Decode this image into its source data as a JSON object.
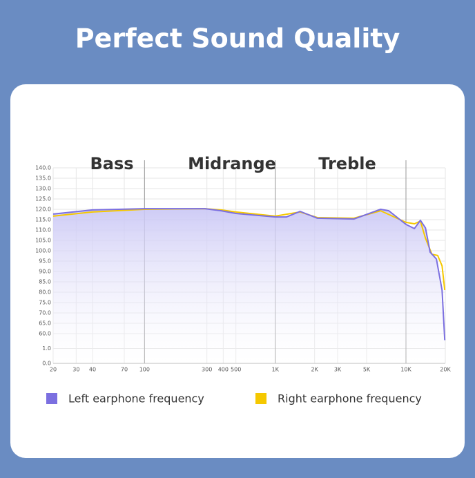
{
  "chart_data": {
    "type": "line",
    "title": "Perfect Sound Quality",
    "sections": [
      "Bass",
      "Midrange",
      "Treble"
    ],
    "region_dividers": [
      100,
      1000,
      10000
    ],
    "xscale": "log",
    "grid": true,
    "xlim": [
      20,
      20000
    ],
    "xticks": [
      20,
      30,
      40,
      70,
      100,
      300,
      400,
      500,
      {
        "value": 1000,
        "label": "1K"
      },
      {
        "value": 2000,
        "label": "2K"
      },
      {
        "value": 3000,
        "label": "3K"
      },
      {
        "value": 5000,
        "label": "5K"
      },
      {
        "value": 10000,
        "label": "10K"
      },
      {
        "value": 20000,
        "label": "20K"
      }
    ],
    "ylim": [
      0,
      140
    ],
    "yticks": [
      {
        "value": 140,
        "label": "140.0"
      },
      {
        "value": 135,
        "label": "135.0"
      },
      {
        "value": 130,
        "label": "130.0"
      },
      {
        "value": 125,
        "label": "125.0"
      },
      {
        "value": 120,
        "label": "120.0"
      },
      {
        "value": 115,
        "label": "115.0"
      },
      {
        "value": 110,
        "label": "110.0"
      },
      {
        "value": 105,
        "label": "105.0"
      },
      {
        "value": 100,
        "label": "100.0"
      },
      {
        "value": 95,
        "label": "95.0"
      },
      {
        "value": 90,
        "label": "90.0"
      },
      {
        "value": 85,
        "label": "85.0"
      },
      {
        "value": 80,
        "label": "80.0"
      },
      {
        "value": 75,
        "label": "75.0"
      },
      {
        "value": 70,
        "label": "70.0"
      },
      {
        "value": 65,
        "label": "65.0"
      },
      {
        "value": 60,
        "label": "60.0"
      },
      {
        "value": 1,
        "label": "1.0"
      },
      {
        "value": 0,
        "label": "0.0"
      }
    ],
    "series": [
      {
        "name": "Left earphone frequency",
        "color": "#7b6fe0",
        "x": [
          20,
          40,
          100,
          290,
          385,
          500,
          1000,
          1220,
          1550,
          2100,
          4000,
          6400,
          7400,
          10000,
          11600,
          12900,
          14100,
          15300,
          17100,
          18900,
          19800
        ],
        "values": [
          117.7,
          119.7,
          120.3,
          120.3,
          119.3,
          118,
          116.3,
          116.3,
          119,
          115.7,
          115.3,
          120,
          119.3,
          112.7,
          110.7,
          114.7,
          111,
          99.3,
          96,
          81,
          34
        ]
      },
      {
        "name": "Right earphone frequency",
        "color": "#f5c800",
        "x": [
          20,
          40,
          100,
          290,
          385,
          500,
          1000,
          1550,
          2100,
          4000,
          6400,
          10000,
          11600,
          12900,
          14100,
          15800,
          17500,
          18900,
          19800
        ],
        "values": [
          116.7,
          118.7,
          120,
          120.3,
          119.7,
          118.7,
          116.7,
          118.7,
          116,
          115.7,
          119.3,
          113.7,
          113,
          114.3,
          106,
          98.3,
          97.7,
          92.7,
          81
        ]
      }
    ]
  }
}
